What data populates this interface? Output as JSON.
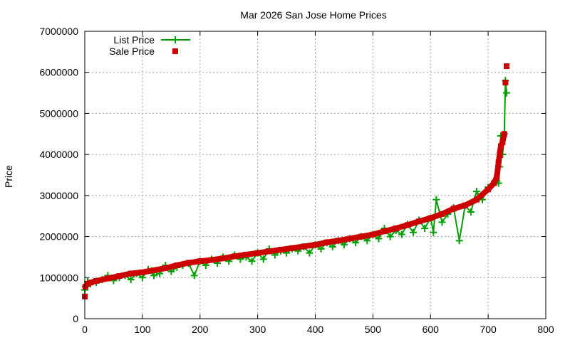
{
  "chart_data": {
    "type": "scatter",
    "title": "Mar 2026 San Jose Home Prices",
    "xlabel": "",
    "ylabel": "Price",
    "xlim": [
      0,
      800
    ],
    "ylim": [
      0,
      7000000
    ],
    "xticks": [
      "0",
      "100",
      "200",
      "300",
      "400",
      "500",
      "600",
      "700",
      "800"
    ],
    "yticks": [
      "0",
      "1000000",
      "2000000",
      "3000000",
      "4000000",
      "5000000",
      "6000000",
      "7000000"
    ],
    "grid": true,
    "legend_position": "top-left",
    "series": [
      {
        "name": "List Price",
        "style": "linespoints",
        "color": "#00a000",
        "marker": "plus",
        "x": [
          0,
          1,
          5,
          10,
          20,
          30,
          40,
          50,
          60,
          70,
          80,
          90,
          100,
          110,
          120,
          130,
          140,
          150,
          160,
          170,
          180,
          190,
          200,
          210,
          220,
          230,
          240,
          250,
          260,
          270,
          280,
          290,
          300,
          310,
          320,
          330,
          340,
          350,
          360,
          370,
          380,
          390,
          400,
          410,
          420,
          430,
          440,
          450,
          460,
          470,
          480,
          490,
          500,
          510,
          520,
          530,
          540,
          550,
          560,
          570,
          580,
          590,
          600,
          605,
          610,
          620,
          630,
          640,
          650,
          660,
          670,
          680,
          690,
          700,
          710,
          715,
          718,
          720,
          722,
          725,
          728,
          730,
          732
        ],
        "y": [
          700000,
          780000,
          900000,
          850000,
          880000,
          950000,
          1050000,
          930000,
          1000000,
          1050000,
          950000,
          1100000,
          1000000,
          1200000,
          1050000,
          1100000,
          1300000,
          1150000,
          1250000,
          1300000,
          1350000,
          1050000,
          1400000,
          1300000,
          1450000,
          1350000,
          1500000,
          1400000,
          1550000,
          1450000,
          1500000,
          1400000,
          1600000,
          1450000,
          1700000,
          1550000,
          1650000,
          1600000,
          1700000,
          1650000,
          1750000,
          1600000,
          1800000,
          1700000,
          1850000,
          1750000,
          1900000,
          1800000,
          1950000,
          1850000,
          2000000,
          1900000,
          2050000,
          1950000,
          2200000,
          2000000,
          2150000,
          2050000,
          2300000,
          2100000,
          2400000,
          2200000,
          2450000,
          2100000,
          2900000,
          2350000,
          2550000,
          2700000,
          1900000,
          2750000,
          2600000,
          3100000,
          2900000,
          3200000,
          3300000,
          3350000,
          3300000,
          3700000,
          4450000,
          4000000,
          4500000,
          5800000,
          5500000
        ]
      },
      {
        "name": "Sale Price",
        "style": "points",
        "color": "#cc0000",
        "marker": "square",
        "x": [
          0,
          1,
          5,
          10,
          20,
          40,
          60,
          80,
          100,
          120,
          140,
          160,
          180,
          200,
          220,
          240,
          260,
          280,
          300,
          320,
          340,
          360,
          380,
          400,
          420,
          440,
          460,
          480,
          500,
          520,
          540,
          560,
          580,
          600,
          620,
          640,
          660,
          680,
          700,
          710,
          715,
          718,
          720,
          722,
          725,
          728,
          730,
          732
        ],
        "y": [
          540000,
          780000,
          850000,
          880000,
          920000,
          980000,
          1040000,
          1100000,
          1130000,
          1180000,
          1230000,
          1300000,
          1360000,
          1400000,
          1430000,
          1470000,
          1520000,
          1560000,
          1600000,
          1640000,
          1680000,
          1720000,
          1760000,
          1800000,
          1860000,
          1900000,
          1950000,
          2000000,
          2050000,
          2130000,
          2200000,
          2280000,
          2370000,
          2450000,
          2550000,
          2680000,
          2760000,
          2900000,
          3150000,
          3300000,
          3450000,
          3800000,
          4000000,
          4200000,
          4300000,
          4500000,
          5750000,
          6150000
        ]
      }
    ]
  }
}
